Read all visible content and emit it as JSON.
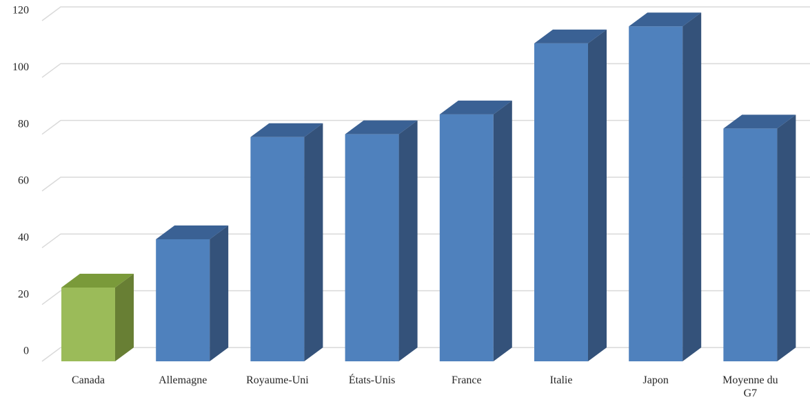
{
  "chart_data": {
    "type": "bar",
    "title": "",
    "xlabel": "",
    "ylabel": "",
    "ylim": [
      0,
      120
    ],
    "yticks": [
      0,
      20,
      40,
      60,
      80,
      100,
      120
    ],
    "grid": true,
    "legend": "none",
    "categories": [
      "Canada",
      "Allemagne",
      "Royaume-Uni",
      "États-Unis",
      "France",
      "Italie",
      "Japon",
      "Moyenne du G7"
    ],
    "series": [
      {
        "values": [
          26,
          43,
          79,
          80,
          87,
          112,
          118,
          82
        ]
      }
    ],
    "colors": {
      "highlight": {
        "front": "#9BBB59",
        "top": "#7A9A3A",
        "side": "#687F34"
      },
      "default": {
        "front": "#4F81BD",
        "top": "#3A6194",
        "side": "#34527A"
      },
      "grid": "#D9D9D9"
    },
    "highlight_category": "Canada"
  }
}
